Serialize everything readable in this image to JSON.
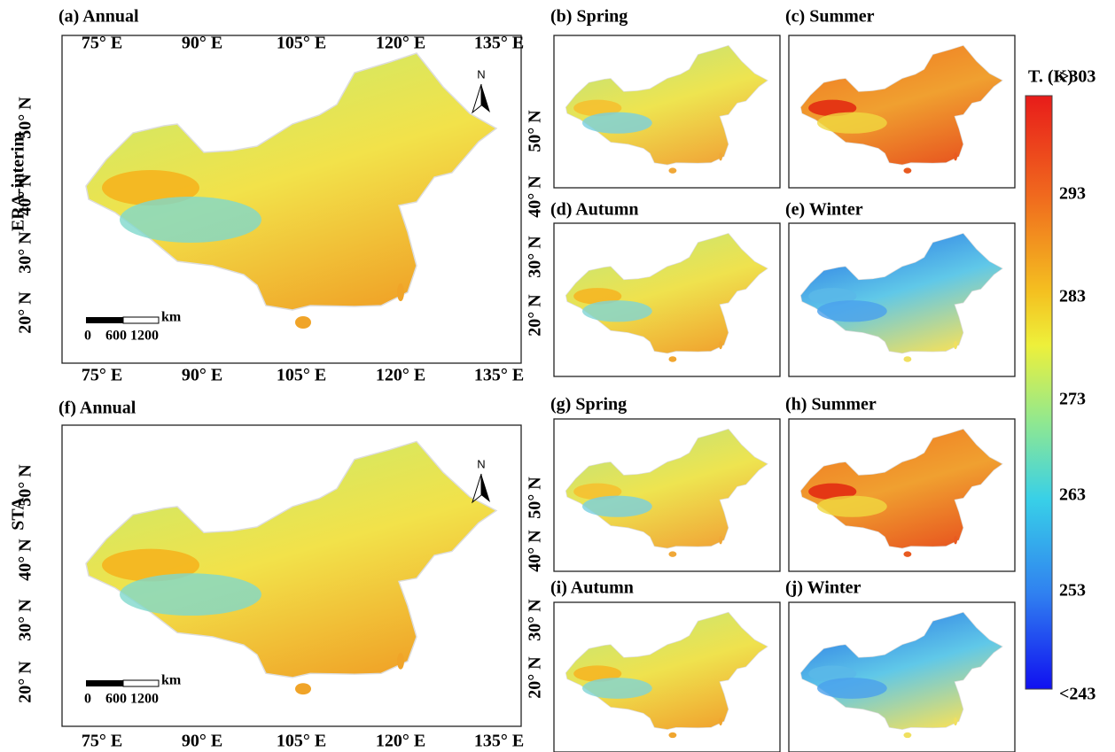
{
  "panels": [
    {
      "label": "(a) Annual"
    },
    {
      "label": "(b) Spring"
    },
    {
      "label": "(c) Summer"
    },
    {
      "label": "(d) Autumn"
    },
    {
      "label": "(e) Winter"
    },
    {
      "label": "(f) Annual"
    },
    {
      "label": "(g) Spring"
    },
    {
      "label": "(h) Summer"
    },
    {
      "label": "(i) Autumn"
    },
    {
      "label": "(j) Winter"
    }
  ],
  "row_labels": [
    "ERA-interim",
    "STA"
  ],
  "longitude_labels": [
    "75° E",
    "90° E",
    "105° E",
    "120° E",
    "135° E"
  ],
  "latitude_labels": [
    "50° N",
    "40° N",
    "30° N",
    "20° N"
  ],
  "north": "N",
  "scale_bar": {
    "unit": "km",
    "zero": "0",
    "marks": "600 1200"
  },
  "colorbar": {
    "title": "T. (K)",
    "labels": [
      ">303",
      "293",
      "283",
      "273",
      "263",
      "253",
      "<243"
    ]
  }
}
